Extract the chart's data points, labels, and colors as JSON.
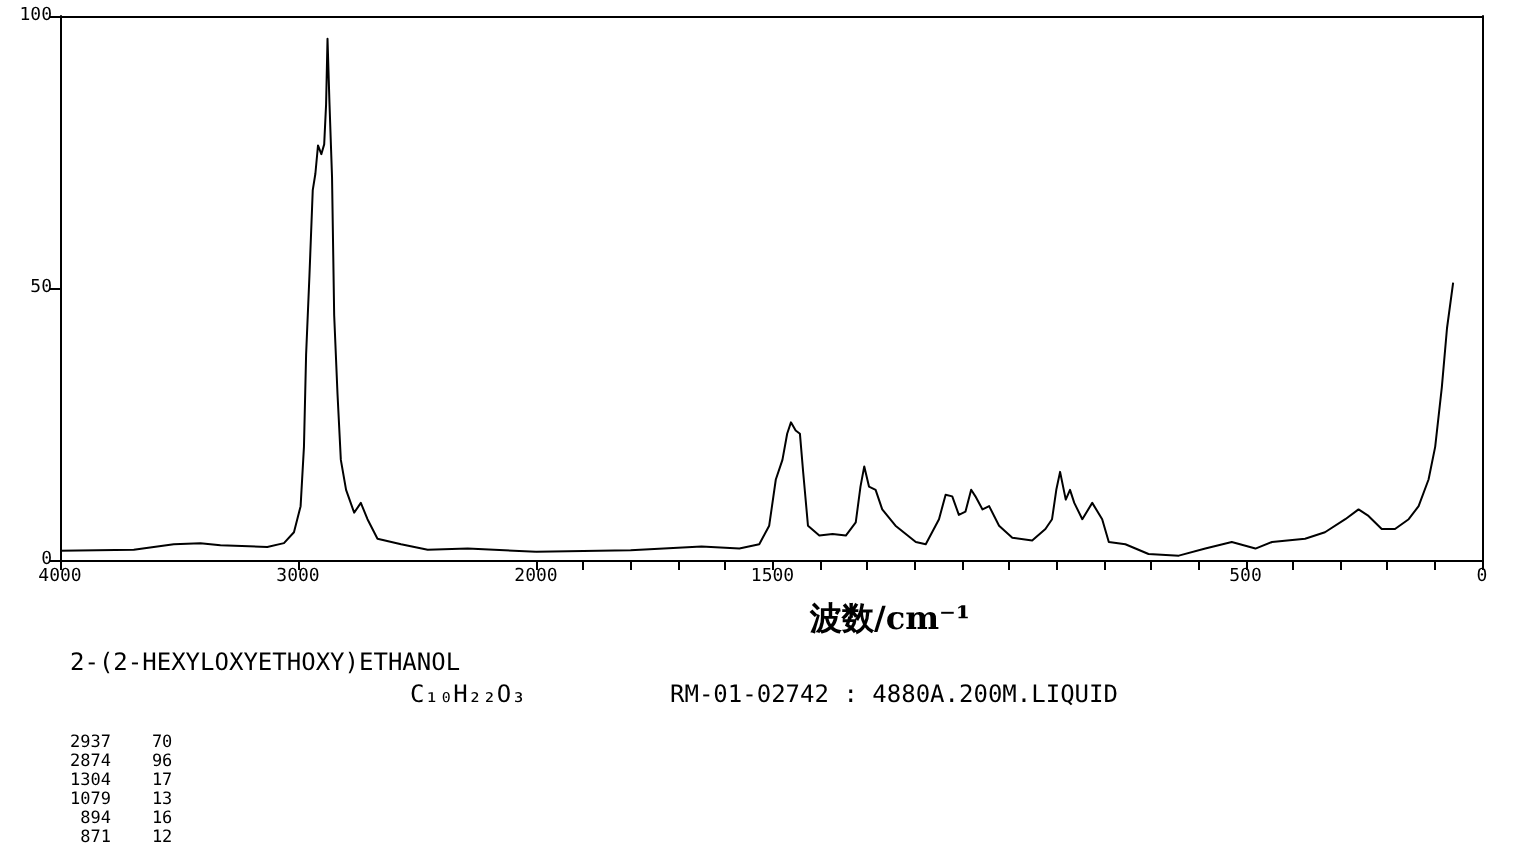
{
  "chart_data": [
    {
      "type": "line",
      "color": "#000000",
      "marker": "none",
      "xlim": [
        4000,
        2000
      ],
      "xticks": [
        4000,
        3000,
        2000
      ],
      "ylim": [
        0,
        100
      ],
      "yticks": [
        0,
        50,
        100
      ],
      "x": [
        4000,
        3690,
        3522,
        3410,
        3326,
        3129,
        3059,
        3017,
        2989,
        2975,
        2966,
        2952,
        2938,
        2927,
        2916,
        2902,
        2890,
        2882,
        2876,
        2868,
        2857,
        2848,
        2834,
        2820,
        2798,
        2764,
        2736,
        2708,
        2666,
        2567,
        2455,
        2287,
        2000
      ],
      "values": [
        1.7,
        1.9,
        2.9,
        3.1,
        2.7,
        2.4,
        3.1,
        5.1,
        9.9,
        20.8,
        37.7,
        52.2,
        68,
        71,
        76.2,
        74.6,
        76.4,
        83.7,
        95.8,
        84.3,
        70.4,
        45,
        30.5,
        18.4,
        12.9,
        8.7,
        10.5,
        7.5,
        3.9,
        2.9,
        1.9,
        2.1,
        1.5
      ],
      "annotations": [
        "2-(2-HEXYLOXYETHOXY)ETHANOL",
        "C₁₀H₂₂O₃",
        "RM-01-02742 : 4880A.200M.LIQUID",
        "2937    70",
        "2874    96",
        "1304    17",
        "1079    13",
        " 894    16",
        " 871    12"
      ]
    },
    {
      "type": "line",
      "color": "#000000",
      "marker": "none",
      "xlim": [
        2000,
        0
      ],
      "ylim": [
        0,
        100
      ],
      "yticks": [
        0,
        50,
        100
      ],
      "tick_labels": "x",
      "xlabel": "波数/cm⁻¹",
      "xticks": [
        {
          "value": 1900,
          "label": null
        },
        {
          "value": 1800,
          "label": null
        },
        {
          "value": 1700,
          "label": null
        },
        {
          "value": 1600,
          "label": null
        },
        1500,
        {
          "value": 1400,
          "label": null
        },
        {
          "value": 1300,
          "label": null
        },
        {
          "value": 1200,
          "label": null
        },
        {
          "value": 1100,
          "label": null
        },
        {
          "value": 1000,
          "label": null
        },
        {
          "value": 900,
          "label": null
        },
        {
          "value": 800,
          "label": null
        },
        {
          "value": 700,
          "label": null
        },
        {
          "value": 600,
          "label": null
        },
        500,
        {
          "value": 400,
          "label": null
        },
        {
          "value": 300,
          "label": null
        },
        {
          "value": 200,
          "label": null
        },
        {
          "value": 100,
          "label": null
        },
        0
      ],
      "x": [
        2000,
        1800,
        1650,
        1570,
        1528,
        1507,
        1493,
        1479,
        1469,
        1461,
        1451,
        1442,
        1435,
        1425,
        1401,
        1373,
        1345,
        1324,
        1314,
        1306,
        1296,
        1282,
        1268,
        1240,
        1197,
        1176,
        1148,
        1134,
        1120,
        1106,
        1092,
        1080,
        1071,
        1056,
        1042,
        1021,
        993,
        951,
        923,
        909,
        900,
        892,
        880,
        871,
        862,
        845,
        824,
        803,
        789,
        754,
        705,
        641,
        585,
        529,
        479,
        444,
        374,
        332,
        289,
        261,
        240,
        212,
        184,
        155,
        134,
        113,
        99,
        85,
        74,
        61
      ],
      "values": [
        1.5,
        1.8,
        2.5,
        2.1,
        2.9,
        6.3,
        14.8,
        18.4,
        23.2,
        25.3,
        23.8,
        23.2,
        16,
        6.3,
        4.5,
        4.8,
        4.5,
        6.9,
        13.5,
        17.2,
        13.5,
        12.9,
        9.3,
        6.3,
        3.3,
        2.9,
        7.5,
        12,
        11.7,
        8.3,
        8.9,
        12.9,
        11.7,
        9.3,
        9.9,
        6.3,
        4.1,
        3.6,
        5.7,
        7.5,
        12.9,
        16.2,
        11.1,
        12.9,
        10.5,
        7.5,
        10.5,
        7.5,
        3.3,
        2.9,
        1.1,
        0.8,
        2.1,
        3.3,
        2.1,
        3.3,
        3.9,
        5.1,
        7.5,
        9.3,
        8.1,
        5.7,
        5.7,
        7.5,
        9.9,
        14.8,
        20.8,
        31.7,
        42.6,
        51
      ]
    }
  ]
}
